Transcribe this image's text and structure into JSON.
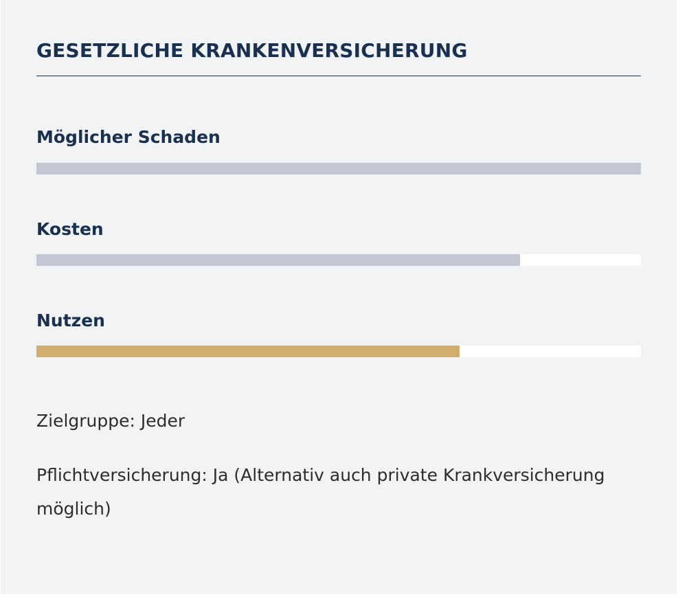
{
  "card": {
    "title": "GESETZLICHE KRANKENVERSICHERUNG"
  },
  "metrics": [
    {
      "label": "Möglicher Schaden",
      "level_percent": 100,
      "color": "#c4c6d4"
    },
    {
      "label": "Kosten",
      "level_percent": 80,
      "color": "#c4c6d4"
    },
    {
      "label": "Nutzen",
      "level_percent": 70,
      "color": "#d3ad6b"
    }
  ],
  "details": {
    "zielgruppe_key": "Zielgruppe:",
    "zielgruppe_value": "Jeder",
    "pflicht_key": "Pflichtversicherung:",
    "pflicht_value": "Ja (Alternativ auch private Krankversicherung möglich)"
  },
  "colors": {
    "heading": "#1a3050",
    "background": "#f2f3f5",
    "track": "#ffffff"
  }
}
